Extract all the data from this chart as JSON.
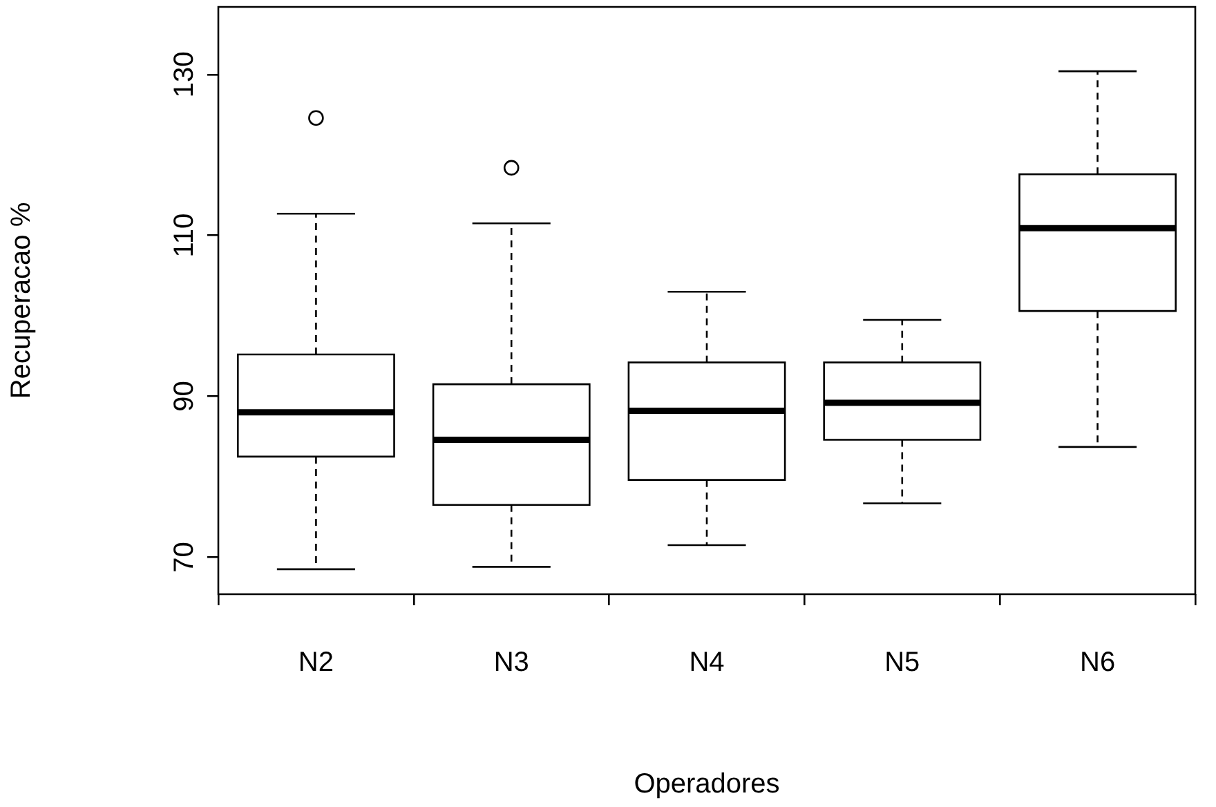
{
  "chart_data": {
    "type": "box",
    "xlabel": "Operadores",
    "ylabel": "Recuperacao %",
    "categories": [
      "N2",
      "N3",
      "N4",
      "N5",
      "N6"
    ],
    "boxes": [
      {
        "low": 68.5,
        "q1": 82.5,
        "median": 88,
        "q3": 95.2,
        "high": 112.7,
        "outliers": [
          124.6
        ]
      },
      {
        "low": 68.8,
        "q1": 76.5,
        "median": 84.6,
        "q3": 91.5,
        "high": 111.5,
        "outliers": [
          118.4
        ]
      },
      {
        "low": 71.5,
        "q1": 79.6,
        "median": 88.2,
        "q3": 94.2,
        "high": 103
      },
      {
        "low": 76.7,
        "q1": 84.6,
        "median": 89.2,
        "q3": 94.2,
        "high": 99.5
      },
      {
        "low": 83.7,
        "q1": 100.6,
        "median": 110.9,
        "q3": 117.6,
        "high": 130.4
      }
    ],
    "ylim": [
      65.4,
      138.4
    ],
    "yticks": [
      70,
      90,
      110,
      130
    ],
    "grid": false,
    "legend": false
  }
}
